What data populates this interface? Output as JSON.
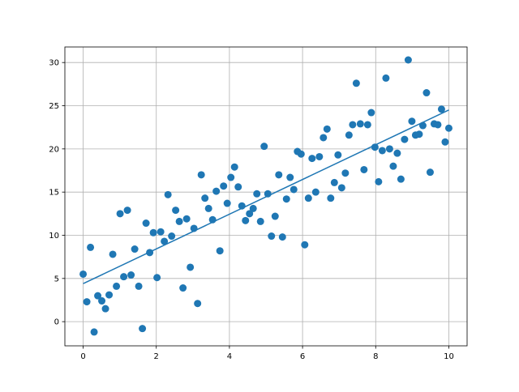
{
  "chart_data": {
    "type": "scatter",
    "series": [
      {
        "type": "scatter",
        "color": "#1f77b4",
        "x": [
          0,
          0.1,
          0.2,
          0.3,
          0.4,
          0.51,
          0.61,
          0.71,
          0.81,
          0.91,
          1.01,
          1.11,
          1.21,
          1.31,
          1.41,
          1.52,
          1.62,
          1.72,
          1.82,
          1.92,
          2.02,
          2.12,
          2.22,
          2.32,
          2.42,
          2.53,
          2.63,
          2.73,
          2.83,
          2.93,
          3.03,
          3.13,
          3.23,
          3.33,
          3.43,
          3.54,
          3.64,
          3.74,
          3.84,
          3.94,
          4.04,
          4.14,
          4.24,
          4.34,
          4.44,
          4.55,
          4.65,
          4.75,
          4.85,
          4.95,
          5.05,
          5.15,
          5.25,
          5.35,
          5.45,
          5.56,
          5.66,
          5.76,
          5.86,
          5.96,
          6.06,
          6.16,
          6.26,
          6.36,
          6.46,
          6.57,
          6.67,
          6.77,
          6.87,
          6.97,
          7.07,
          7.17,
          7.27,
          7.37,
          7.47,
          7.58,
          7.68,
          7.78,
          7.88,
          7.98,
          8.08,
          8.18,
          8.28,
          8.38,
          8.48,
          8.59,
          8.69,
          8.79,
          8.89,
          8.99,
          9.09,
          9.19,
          9.29,
          9.39,
          9.49,
          9.6,
          9.7,
          9.8,
          9.9,
          10
        ],
        "values": [
          5.5,
          2.3,
          8.6,
          -1.2,
          3.0,
          2.4,
          1.5,
          3.1,
          7.8,
          4.1,
          12.5,
          5.2,
          12.9,
          5.4,
          8.4,
          4.1,
          -0.8,
          11.4,
          8.0,
          10.3,
          5.1,
          10.4,
          9.3,
          14.7,
          9.9,
          12.9,
          11.6,
          3.9,
          11.9,
          6.3,
          10.8,
          2.1,
          17.0,
          14.3,
          13.1,
          11.8,
          15.1,
          8.2,
          15.7,
          13.7,
          16.7,
          17.9,
          15.6,
          13.4,
          11.7,
          12.5,
          13.1,
          14.8,
          11.6,
          20.3,
          14.8,
          9.9,
          12.2,
          17.0,
          9.8,
          14.2,
          16.7,
          15.3,
          19.7,
          19.4,
          8.9,
          14.3,
          18.9,
          15.0,
          19.1,
          21.3,
          22.3,
          14.3,
          16.1,
          19.3,
          15.5,
          17.2,
          21.6,
          22.8,
          27.6,
          22.9,
          17.6,
          22.8,
          24.2,
          20.2,
          16.2,
          19.8,
          28.2,
          20.0,
          18.0,
          19.5,
          16.5,
          21.1,
          30.3,
          23.2,
          21.6,
          21.7,
          22.7,
          26.5,
          17.3,
          22.9,
          22.8,
          24.6,
          20.8,
          22.4
        ]
      },
      {
        "type": "line",
        "color": "#1f77b4",
        "x": [
          0,
          10
        ],
        "values": [
          4.4,
          24.5
        ]
      }
    ],
    "xlim": [
      -0.5,
      10.5
    ],
    "ylim": [
      -2.8,
      31.8
    ],
    "xticks": [
      0,
      2,
      4,
      6,
      8,
      10
    ],
    "yticks": [
      0,
      5,
      10,
      15,
      20,
      25,
      30
    ],
    "grid": true
  }
}
